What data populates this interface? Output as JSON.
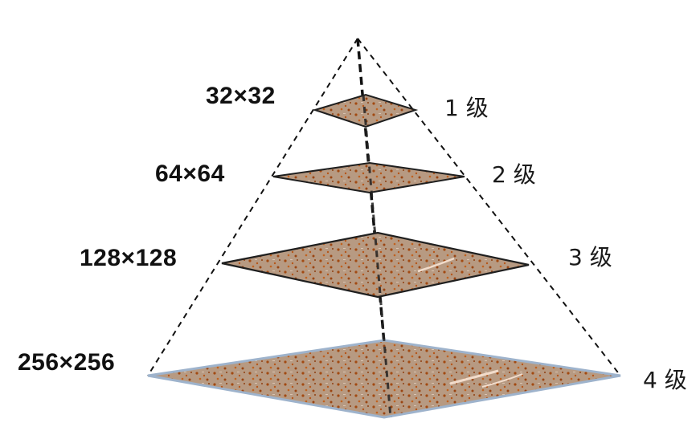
{
  "levels": [
    {
      "size": "32×32",
      "level": "1 级"
    },
    {
      "size": "64×64",
      "level": "2 级"
    },
    {
      "size": "128×128",
      "level": "3 级"
    },
    {
      "size": "256×256",
      "level": "4 级"
    }
  ],
  "colors": {
    "layer_fill": "#b79a82",
    "layer_speckle": "#a24a12",
    "layer_highlight": "#f2dccb",
    "layer_stroke": "#1f1f1f",
    "base_edge": "#9eb3cc",
    "dashed_line": "#111111"
  }
}
